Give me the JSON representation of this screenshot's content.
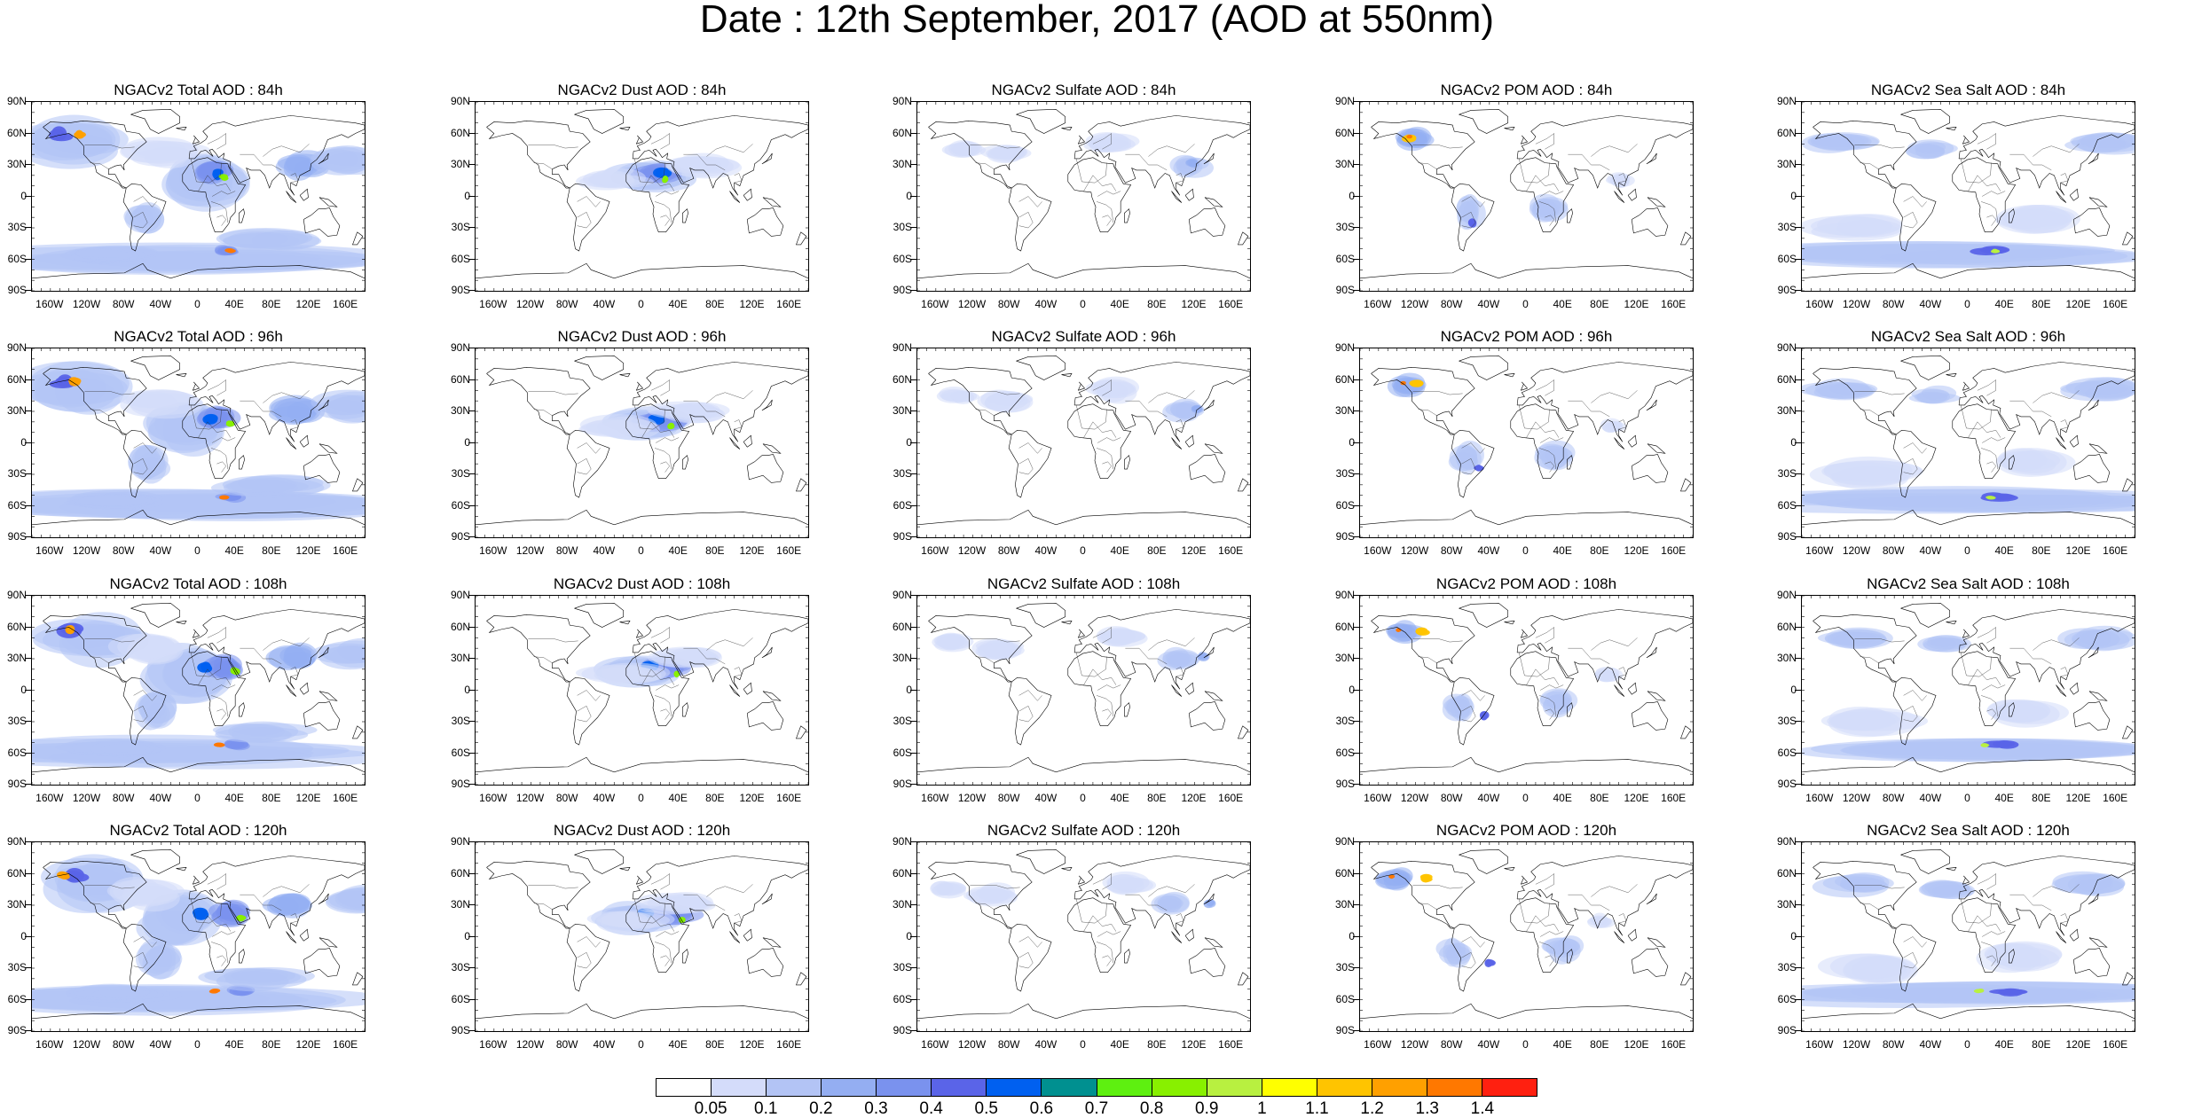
{
  "title": "Date : 12th September, 2017 (AOD at 550nm)",
  "lat_labels": [
    "90N",
    "60N",
    "30N",
    "0",
    "30S",
    "60S",
    "90S"
  ],
  "lon_labels": [
    "160W",
    "120W",
    "80W",
    "40W",
    "0",
    "40E",
    "80E",
    "120E",
    "160E"
  ],
  "panels": [
    {
      "title": "NGACv2 Total AOD : 84h",
      "species": "total"
    },
    {
      "title": "NGACv2 Dust AOD : 84h",
      "species": "dust"
    },
    {
      "title": "NGACv2 Sulfate AOD : 84h",
      "species": "sulfate"
    },
    {
      "title": "NGACv2 POM AOD : 84h",
      "species": "pom"
    },
    {
      "title": "NGACv2 Sea Salt AOD : 84h",
      "species": "seasalt"
    },
    {
      "title": "NGACv2 Total AOD : 96h",
      "species": "total"
    },
    {
      "title": "NGACv2 Dust AOD : 96h",
      "species": "dust"
    },
    {
      "title": "NGACv2 Sulfate AOD : 96h",
      "species": "sulfate"
    },
    {
      "title": "NGACv2 POM AOD : 96h",
      "species": "pom"
    },
    {
      "title": "NGACv2 Sea Salt AOD : 96h",
      "species": "seasalt"
    },
    {
      "title": "NGACv2 Total AOD : 108h",
      "species": "total"
    },
    {
      "title": "NGACv2 Dust AOD : 108h",
      "species": "dust"
    },
    {
      "title": "NGACv2 Sulfate AOD : 108h",
      "species": "sulfate"
    },
    {
      "title": "NGACv2 POM AOD : 108h",
      "species": "pom"
    },
    {
      "title": "NGACv2 Sea Salt AOD : 108h",
      "species": "seasalt"
    },
    {
      "title": "NGACv2 Total AOD : 120h",
      "species": "total"
    },
    {
      "title": "NGACv2 Dust AOD : 120h",
      "species": "dust"
    },
    {
      "title": "NGACv2 Sulfate AOD : 120h",
      "species": "sulfate"
    },
    {
      "title": "NGACv2 POM AOD : 120h",
      "species": "pom"
    },
    {
      "title": "NGACv2 Sea Salt  AOD : 120h",
      "species": "seasalt"
    }
  ],
  "colorbar": {
    "colors": [
      "#ffffff",
      "#d4dcfa",
      "#b3c4f5",
      "#94aef2",
      "#7a92ee",
      "#5a64e8",
      "#0060f0",
      "#009090",
      "#5ef010",
      "#88f000",
      "#b8f040",
      "#ffff00",
      "#ffc400",
      "#ffa000",
      "#ff7800",
      "#ff2010"
    ],
    "labels": [
      "0.05",
      "0.1",
      "0.2",
      "0.3",
      "0.4",
      "0.5",
      "0.6",
      "0.7",
      "0.8",
      "0.9",
      "1",
      "1.1",
      "1.2",
      "1.3",
      "1.4"
    ]
  }
}
